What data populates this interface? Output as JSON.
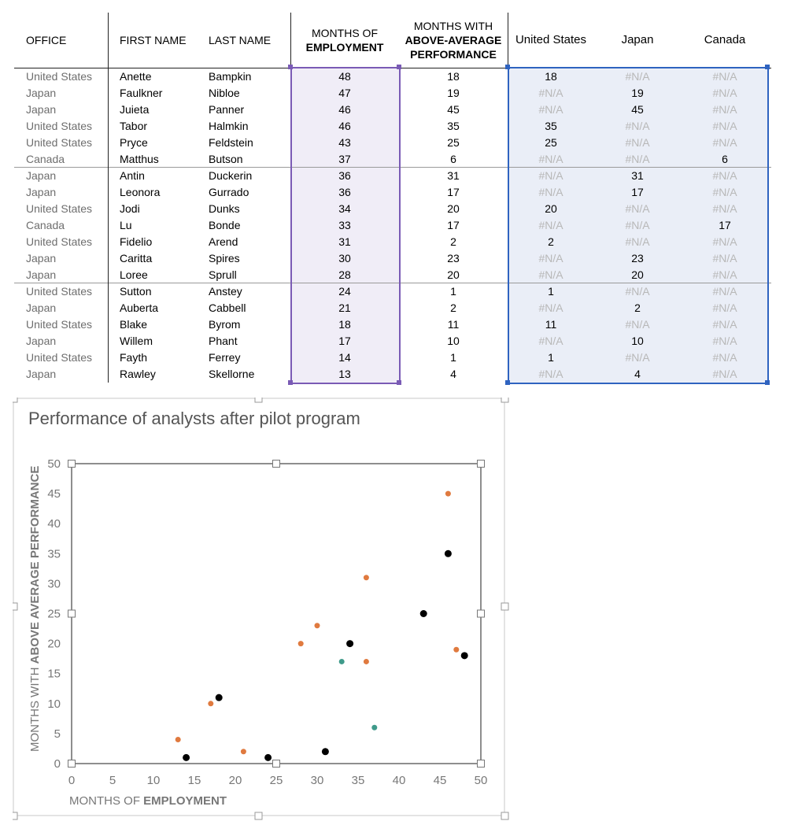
{
  "table": {
    "headers": {
      "office": "OFFICE",
      "first_name": "FIRST NAME",
      "last_name": "LAST NAME",
      "months_employment": [
        "MONTHS OF",
        "EMPLOYMENT"
      ],
      "months_above": [
        "MONTHS WITH",
        "ABOVE-AVERAGE",
        "PERFORMANCE"
      ],
      "us": "United States",
      "japan": "Japan",
      "canada": "Canada"
    },
    "rows": [
      {
        "office": "United States",
        "first": "Anette",
        "last": "Bampkin",
        "emp": "48",
        "above": "18",
        "us": "18",
        "jp": "#N/A",
        "ca": "#N/A"
      },
      {
        "office": "Japan",
        "first": "Faulkner",
        "last": "Nibloe",
        "emp": "47",
        "above": "19",
        "us": "#N/A",
        "jp": "19",
        "ca": "#N/A"
      },
      {
        "office": "Japan",
        "first": "Juieta",
        "last": "Panner",
        "emp": "46",
        "above": "45",
        "us": "#N/A",
        "jp": "45",
        "ca": "#N/A"
      },
      {
        "office": "United States",
        "first": "Tabor",
        "last": "Halmkin",
        "emp": "46",
        "above": "35",
        "us": "35",
        "jp": "#N/A",
        "ca": "#N/A"
      },
      {
        "office": "United States",
        "first": "Pryce",
        "last": "Feldstein",
        "emp": "43",
        "above": "25",
        "us": "25",
        "jp": "#N/A",
        "ca": "#N/A"
      },
      {
        "office": "Canada",
        "first": "Matthus",
        "last": "Butson",
        "emp": "37",
        "above": "6",
        "us": "#N/A",
        "jp": "#N/A",
        "ca": "6"
      },
      {
        "office": "Japan",
        "first": "Antin",
        "last": "Duckerin",
        "emp": "36",
        "above": "31",
        "us": "#N/A",
        "jp": "31",
        "ca": "#N/A"
      },
      {
        "office": "Japan",
        "first": "Leonora",
        "last": "Gurrado",
        "emp": "36",
        "above": "17",
        "us": "#N/A",
        "jp": "17",
        "ca": "#N/A"
      },
      {
        "office": "United States",
        "first": "Jodi",
        "last": "Dunks",
        "emp": "34",
        "above": "20",
        "us": "20",
        "jp": "#N/A",
        "ca": "#N/A"
      },
      {
        "office": "Canada",
        "first": "Lu",
        "last": "Bonde",
        "emp": "33",
        "above": "17",
        "us": "#N/A",
        "jp": "#N/A",
        "ca": "17"
      },
      {
        "office": "United States",
        "first": "Fidelio",
        "last": "Arend",
        "emp": "31",
        "above": "2",
        "us": "2",
        "jp": "#N/A",
        "ca": "#N/A"
      },
      {
        "office": "Japan",
        "first": "Caritta",
        "last": "Spires",
        "emp": "30",
        "above": "23",
        "us": "#N/A",
        "jp": "23",
        "ca": "#N/A"
      },
      {
        "office": "Japan",
        "first": "Loree",
        "last": "Sprull",
        "emp": "28",
        "above": "20",
        "us": "#N/A",
        "jp": "20",
        "ca": "#N/A"
      },
      {
        "office": "United States",
        "first": "Sutton",
        "last": "Anstey",
        "emp": "24",
        "above": "1",
        "us": "1",
        "jp": "#N/A",
        "ca": "#N/A"
      },
      {
        "office": "Japan",
        "first": "Auberta",
        "last": "Cabbell",
        "emp": "21",
        "above": "2",
        "us": "#N/A",
        "jp": "2",
        "ca": "#N/A"
      },
      {
        "office": "United States",
        "first": "Blake",
        "last": "Byrom",
        "emp": "18",
        "above": "11",
        "us": "11",
        "jp": "#N/A",
        "ca": "#N/A"
      },
      {
        "office": "Japan",
        "first": "Willem",
        "last": "Phant",
        "emp": "17",
        "above": "10",
        "us": "#N/A",
        "jp": "10",
        "ca": "#N/A"
      },
      {
        "office": "United States",
        "first": "Fayth",
        "last": "Ferrey",
        "emp": "14",
        "above": "1",
        "us": "1",
        "jp": "#N/A",
        "ca": "#N/A"
      },
      {
        "office": "Japan",
        "first": "Rawley",
        "last": "Skellorne",
        "emp": "13",
        "above": "4",
        "us": "#N/A",
        "jp": "4",
        "ca": "#N/A"
      }
    ]
  },
  "colors": {
    "purple_range": "#7a5bb5",
    "purple_fill": "#f0edf7",
    "blue_range": "#2f63c0",
    "blue_fill": "#eaeef7",
    "us": "#000000",
    "japan": "#e07a3f",
    "canada": "#3f9a8a",
    "na_text": "#b8b8b8",
    "office_text": "#6e6e6e"
  },
  "chart_data": {
    "type": "scatter",
    "title": "Performance of analysts after pilot program",
    "xlabel_parts": [
      "MONTHS OF ",
      "EMPLOYMENT"
    ],
    "ylabel_parts": [
      "MONTHS WITH ",
      "ABOVE AVERAGE PERFORMANCE"
    ],
    "xlim": [
      0,
      50
    ],
    "ylim": [
      0,
      50
    ],
    "xticks": [
      0,
      5,
      10,
      15,
      20,
      25,
      30,
      35,
      40,
      45,
      50
    ],
    "yticks": [
      0,
      5,
      10,
      15,
      20,
      25,
      30,
      35,
      40,
      45,
      50
    ],
    "grid": false,
    "legend": "none",
    "series": [
      {
        "color": "#000000",
        "marker": "large",
        "x": [
          48,
          46,
          43,
          34,
          31,
          24,
          18,
          14
        ],
        "y": [
          18,
          35,
          25,
          20,
          2,
          1,
          11,
          1
        ]
      },
      {
        "color": "#e07a3f",
        "marker": "small",
        "x": [
          47,
          46,
          36,
          36,
          30,
          28,
          21,
          17,
          13
        ],
        "y": [
          19,
          45,
          31,
          17,
          23,
          20,
          2,
          10,
          4
        ]
      },
      {
        "color": "#3f9a8a",
        "marker": "small",
        "x": [
          37,
          33
        ],
        "y": [
          6,
          17
        ]
      }
    ]
  }
}
